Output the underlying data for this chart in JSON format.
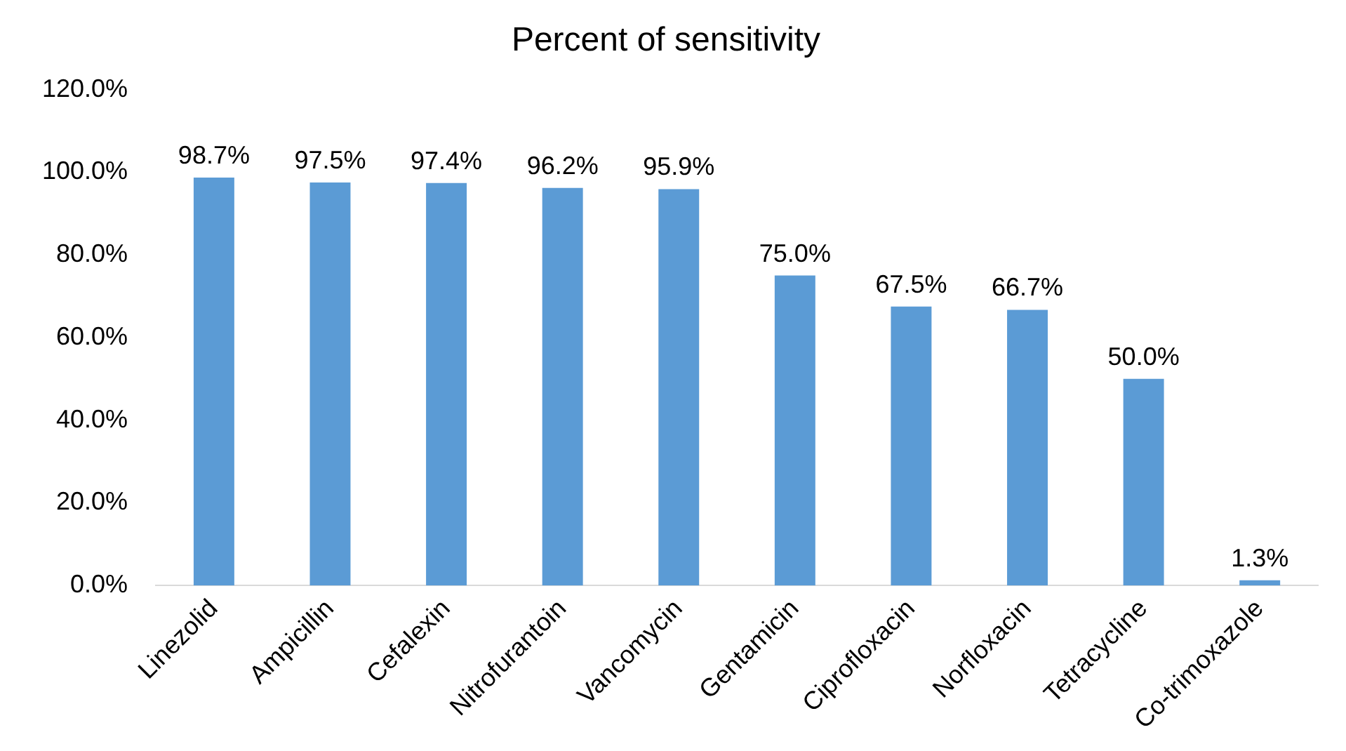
{
  "chart_data": {
    "type": "bar",
    "title": "Percent of sensitivity",
    "categories": [
      "Linezolid",
      "Ampicillin",
      "Cefalexin",
      "Nitrofurantoin",
      "Vancomycin",
      "Gentamicin",
      "Ciprofloxacin",
      "Norfloxacin",
      "Tetracycline",
      "Co-trimoxazole"
    ],
    "values": [
      98.7,
      97.5,
      97.4,
      96.2,
      95.9,
      75.0,
      67.5,
      66.7,
      50.0,
      1.3
    ],
    "value_labels": [
      "98.7%",
      "97.5%",
      "97.4%",
      "96.2%",
      "95.9%",
      "75.0%",
      "67.5%",
      "66.7%",
      "50.0%",
      "1.3%"
    ],
    "color": "#5b9bd5",
    "ylim": [
      0,
      120
    ],
    "yticks": [
      {
        "value": 0,
        "label": "0.0%"
      },
      {
        "value": 20,
        "label": "20.0%"
      },
      {
        "value": 40,
        "label": "40.0%"
      },
      {
        "value": 60,
        "label": "60.0%"
      },
      {
        "value": 80,
        "label": "80.0%"
      },
      {
        "value": 100,
        "label": "100.0%"
      },
      {
        "value": 120,
        "label": "120.0%"
      }
    ],
    "grid": false,
    "legend": false
  }
}
